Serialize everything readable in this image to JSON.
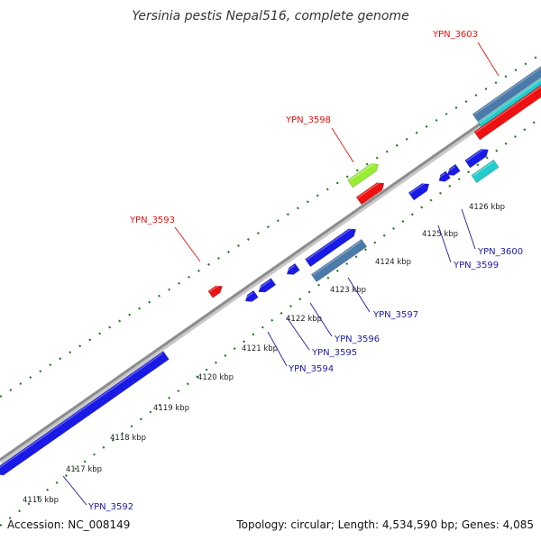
{
  "title": "Yersinia pestis Nepal516, complete genome",
  "footer": {
    "accession": "Accession: NC_008149",
    "stats": "Topology: circular; Length: 4,534,590 bp; Genes: 4,085"
  },
  "colors": {
    "background": "#ffffff",
    "backbone": "#8c8c8c",
    "tick_marks": "#1f7a1f",
    "forward_label": "#ee1111",
    "reverse_label": "#1a1aaa",
    "gene_blue": "#1a1ae6",
    "gene_steel": "#4a7aaa",
    "gene_red": "#ee1111",
    "gene_cyan": "#22cccc",
    "gene_lime": "#99ee33"
  },
  "scale": {
    "ticks": [
      "4116 kbp",
      "4117 kbp",
      "4118 kbp",
      "4119 kbp",
      "4120 kbp",
      "4121 kbp",
      "4122 kbp",
      "4123 kbp",
      "4124 kbp",
      "4125 kbp",
      "4126 kbp"
    ]
  },
  "labels": {
    "forward": [
      "YPN_3593",
      "YPN_3598",
      "YPN_3603"
    ],
    "reverse": [
      "YPN_3592",
      "YPN_3594",
      "YPN_3595",
      "YPN_3596",
      "YPN_3597",
      "YPN_3599",
      "YPN_3600"
    ]
  }
}
